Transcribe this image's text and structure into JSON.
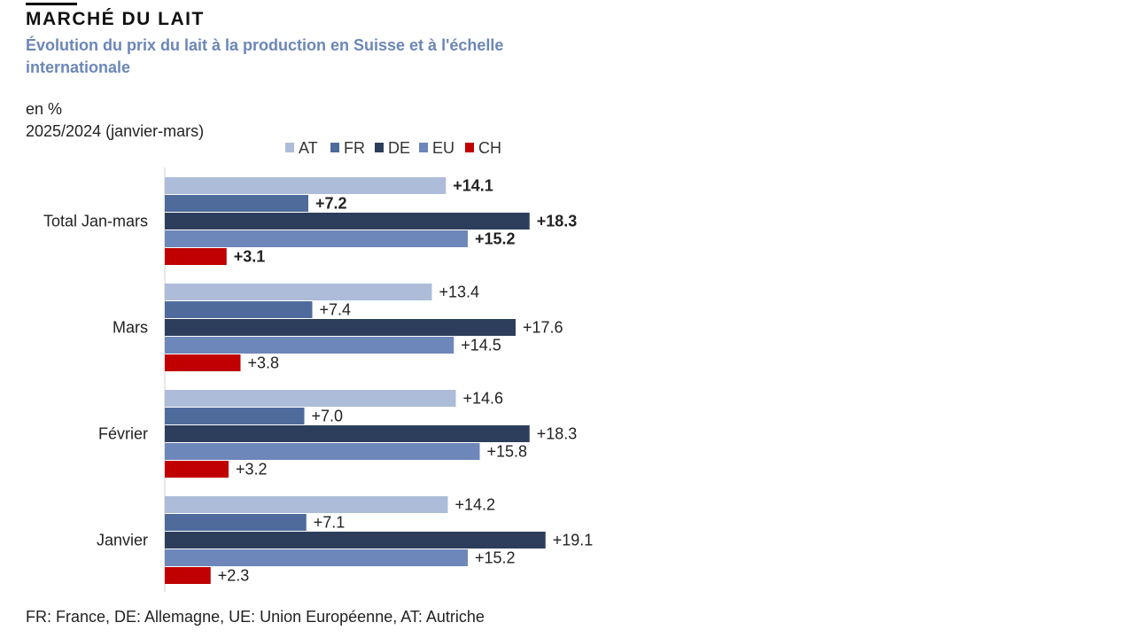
{
  "header": {
    "title": "MARCHÉ DU LAIT",
    "subtitle": "Évolution du prix du lait à la production en Suisse et à l'échelle internationale",
    "unit": "en %",
    "period": "2025/2024 (janvier-mars)"
  },
  "footnote": "FR: France, DE: Allemagne, UE: Union Européenne, AT: Autriche",
  "chart_data": {
    "type": "bar",
    "orientation": "horizontal",
    "categories": [
      "Total Jan-mars",
      "Mars",
      "Février",
      "Janvier"
    ],
    "series": [
      {
        "name": "AT",
        "color": "#adbcd8",
        "values": [
          14.1,
          13.4,
          14.6,
          14.2
        ],
        "labels": [
          "+14.1",
          "+13.4",
          "+14.6",
          "+14.2"
        ]
      },
      {
        "name": "FR",
        "color": "#4f6b9c",
        "values": [
          7.2,
          7.4,
          7.0,
          7.1
        ],
        "labels": [
          "+7.2",
          "+7.4",
          "+7.0",
          "+7.1"
        ]
      },
      {
        "name": "DE",
        "color": "#2d3e5c",
        "values": [
          18.3,
          17.6,
          18.3,
          19.1
        ],
        "labels": [
          "+18.3",
          "+17.6",
          "+18.3",
          "+19.1"
        ]
      },
      {
        "name": "EU",
        "color": "#6e87ba",
        "values": [
          15.2,
          14.5,
          15.8,
          15.2
        ],
        "labels": [
          "+15.2",
          "+14.5",
          "+15.8",
          "+15.2"
        ]
      },
      {
        "name": "CH",
        "color": "#c00000",
        "values": [
          3.1,
          3.8,
          3.2,
          2.3
        ],
        "labels": [
          "+3.1",
          "+3.8",
          "+3.2",
          "+2.3"
        ]
      }
    ],
    "bold_categories": [
      "Total Jan-mars"
    ],
    "xlim": [
      0,
      22
    ],
    "legend_position": "top",
    "grid": false
  }
}
